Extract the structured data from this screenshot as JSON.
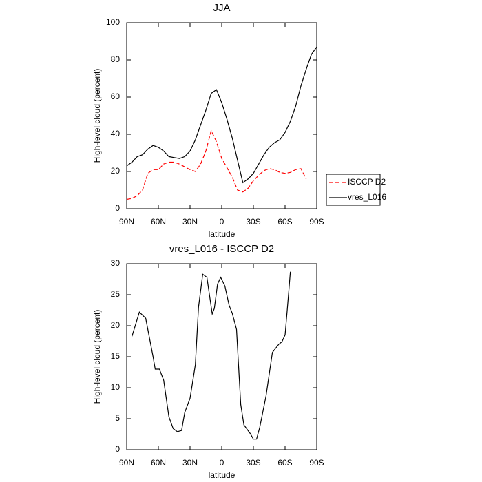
{
  "chart_data": [
    {
      "type": "line",
      "title": "JJA",
      "x_label": "latitude",
      "y_label": "High-level cloud (percent)",
      "x": [
        90,
        85,
        80,
        75,
        70,
        65,
        60,
        55,
        50,
        45,
        40,
        35,
        30,
        25,
        20,
        15,
        10,
        5,
        0,
        -5,
        -10,
        -15,
        -20,
        -25,
        -30,
        -35,
        -40,
        -45,
        -50,
        -55,
        -60,
        -65,
        -70,
        -75,
        -80,
        -85,
        -90
      ],
      "series": [
        {
          "name": "ISCCP D2",
          "color": "#ff0000",
          "dash": true,
          "values": [
            5,
            5.5,
            7,
            10,
            19,
            21,
            21,
            24,
            25,
            25,
            24,
            22.5,
            21,
            20,
            24,
            31,
            42,
            36,
            27,
            22,
            17,
            10,
            9,
            11,
            15,
            18,
            20.5,
            21.5,
            21,
            19.5,
            19,
            19.5,
            21,
            21.5,
            16,
            null,
            null
          ]
        },
        {
          "name": "vres_L016",
          "color": "#000000",
          "dash": false,
          "values": [
            23,
            25,
            28,
            29,
            32,
            34,
            33,
            31,
            28,
            27.5,
            27,
            28,
            31,
            37,
            45,
            53,
            62,
            64,
            57,
            48,
            38,
            26,
            14,
            16,
            19,
            24,
            29,
            33,
            35.5,
            37,
            41,
            47,
            55,
            66,
            75,
            83,
            87
          ]
        }
      ],
      "xlim": [
        90,
        -90
      ],
      "xticks": [
        {
          "value": 90,
          "label": "90N"
        },
        {
          "value": 60,
          "label": "60N"
        },
        {
          "value": 30,
          "label": "30N"
        },
        0,
        {
          "value": -30,
          "label": "30S"
        },
        {
          "value": -60,
          "label": "60S"
        },
        {
          "value": -90,
          "label": "90S"
        }
      ],
      "ylim": [
        0,
        100
      ],
      "yticks": [
        0,
        20,
        40,
        60,
        80,
        100
      ],
      "legend": "right"
    },
    {
      "type": "line",
      "title": "vres_L016 - ISCCP D2",
      "x_label": "latitude",
      "y_label": "High-level cloud (percent)",
      "x": [
        85,
        78,
        72,
        65,
        63,
        59,
        55,
        50,
        46,
        42,
        38,
        35,
        30,
        25,
        22,
        18,
        14,
        9,
        7,
        4,
        1,
        -3,
        -7,
        -10,
        -14,
        -18,
        -21,
        -27,
        -30,
        -33,
        -36,
        -42,
        -48,
        -54,
        -57,
        -60,
        -62,
        -65
      ],
      "series": [
        {
          "name": "vres_L016 - ISCCP D2",
          "color": "#000000",
          "dash": false,
          "values": [
            18.3,
            22.2,
            21.2,
            15,
            13,
            13,
            11.2,
            5.3,
            3.4,
            2.9,
            3.1,
            6,
            8.3,
            13.7,
            23,
            28.3,
            27.8,
            21.9,
            22.8,
            26.7,
            27.8,
            26.4,
            23.3,
            22,
            19.4,
            7.3,
            4,
            2.6,
            1.7,
            1.7,
            3.6,
            8.7,
            15.7,
            17,
            17.4,
            18.5,
            22.5,
            28.7
          ]
        }
      ],
      "xlim": [
        90,
        -90
      ],
      "xticks": [
        {
          "value": 90,
          "label": "90N"
        },
        {
          "value": 60,
          "label": "60N"
        },
        {
          "value": 30,
          "label": "30N"
        },
        0,
        {
          "value": -30,
          "label": "30S"
        },
        {
          "value": -60,
          "label": "60S"
        },
        {
          "value": -90,
          "label": "90S"
        }
      ],
      "ylim": [
        0,
        30
      ],
      "yticks": [
        0,
        5,
        10,
        15,
        20,
        25,
        30
      ]
    }
  ]
}
